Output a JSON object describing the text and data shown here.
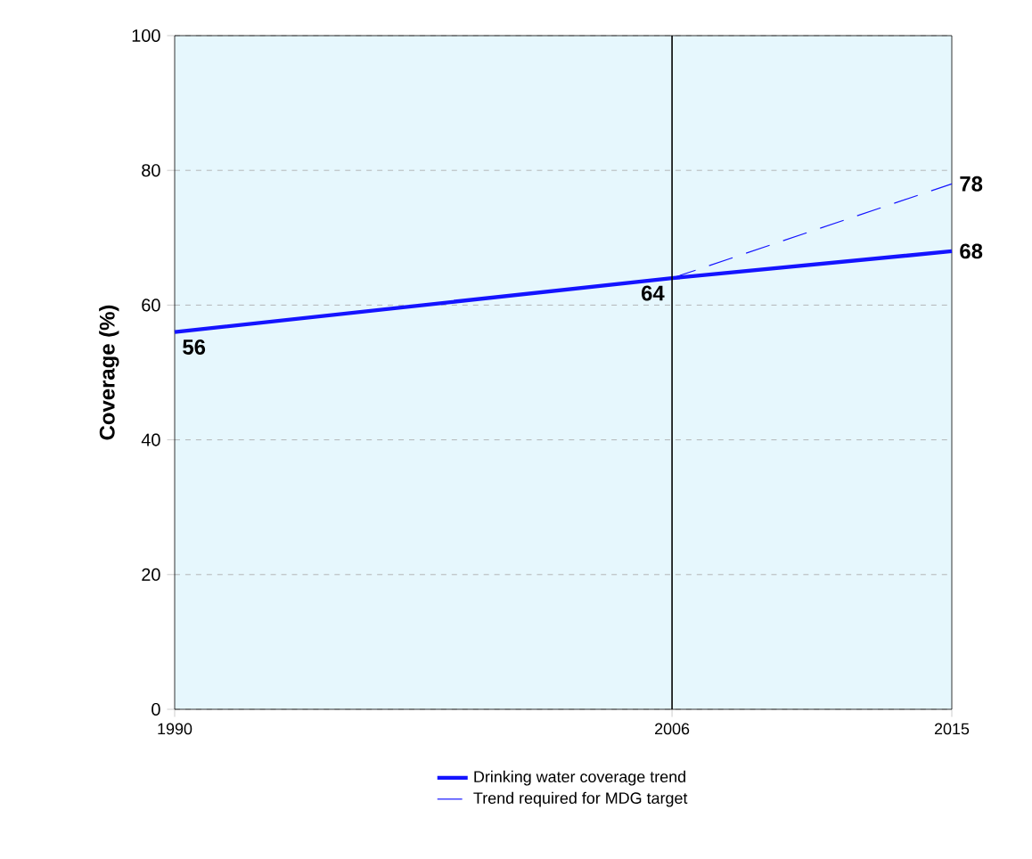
{
  "chart_data": {
    "type": "line",
    "ylabel": "Coverage (%)",
    "xlim": [
      1990,
      2015
    ],
    "xticks": [
      1990,
      2006,
      2015
    ],
    "ylim": [
      0,
      100
    ],
    "yticks": [
      0,
      20,
      40,
      60,
      80,
      100
    ],
    "grid": "y",
    "legend": "bottom",
    "ref_lines": [
      {
        "axis": "x",
        "value": 2006,
        "color": "#000000"
      }
    ],
    "series": [
      {
        "name": "Drinking water coverage trend",
        "color": "#1414ff",
        "line_style": "solid",
        "x": [
          1990,
          2006,
          2015
        ],
        "values": [
          56,
          64,
          68
        ],
        "value_labels": [
          "56",
          "64",
          "68"
        ]
      },
      {
        "name": "Trend required for MDG target",
        "color": "#1414ff",
        "line_style": "dashed",
        "x": [
          2006,
          2015
        ],
        "values": [
          64,
          78
        ],
        "value_labels": [
          null,
          "78"
        ]
      }
    ]
  }
}
